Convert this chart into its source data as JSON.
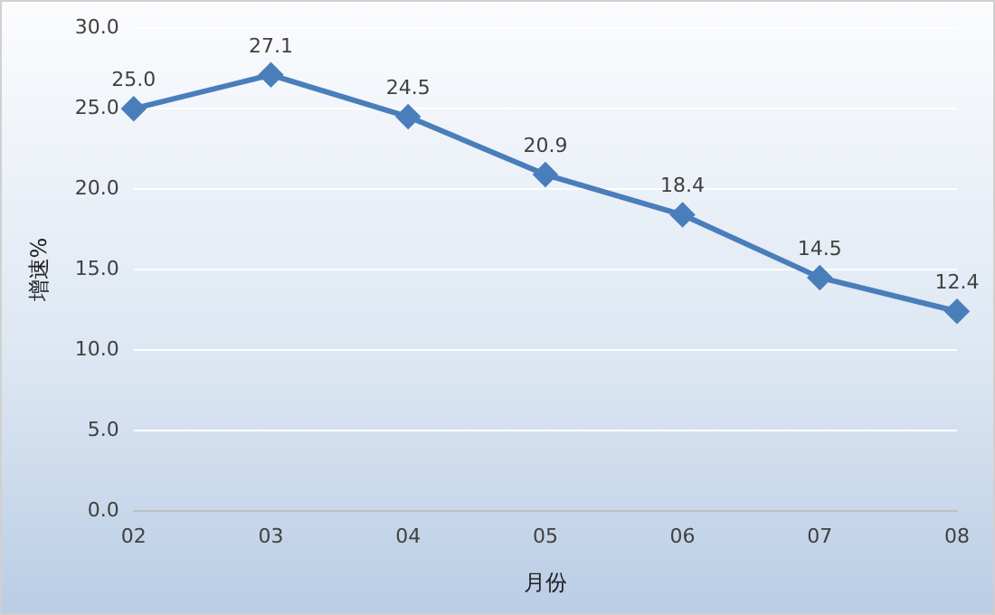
{
  "chart_data": {
    "type": "line",
    "xlabel": "月份",
    "ylabel": "增速%",
    "categories": [
      "02",
      "03",
      "04",
      "05",
      "06",
      "07",
      "08"
    ],
    "series": [
      {
        "color": "#4a7ebb",
        "values": [
          25.0,
          27.1,
          24.5,
          20.9,
          18.4,
          14.5,
          12.4
        ],
        "value_labels": [
          "25.0",
          "27.1",
          "24.5",
          "20.9",
          "18.4",
          "14.5",
          "12.4"
        ]
      }
    ],
    "ylim": [
      0,
      30
    ],
    "yticks": [
      {
        "value": 0,
        "label": "0.0"
      },
      {
        "value": 5,
        "label": "5.0"
      },
      {
        "value": 10,
        "label": "10.0"
      },
      {
        "value": 15,
        "label": "15.0"
      },
      {
        "value": 20,
        "label": "20.0"
      },
      {
        "value": 25,
        "label": "25.0"
      },
      {
        "value": 30,
        "label": "30.0"
      }
    ],
    "grid": "y",
    "legend": false,
    "marker": "diamond",
    "line_style": "solid"
  }
}
